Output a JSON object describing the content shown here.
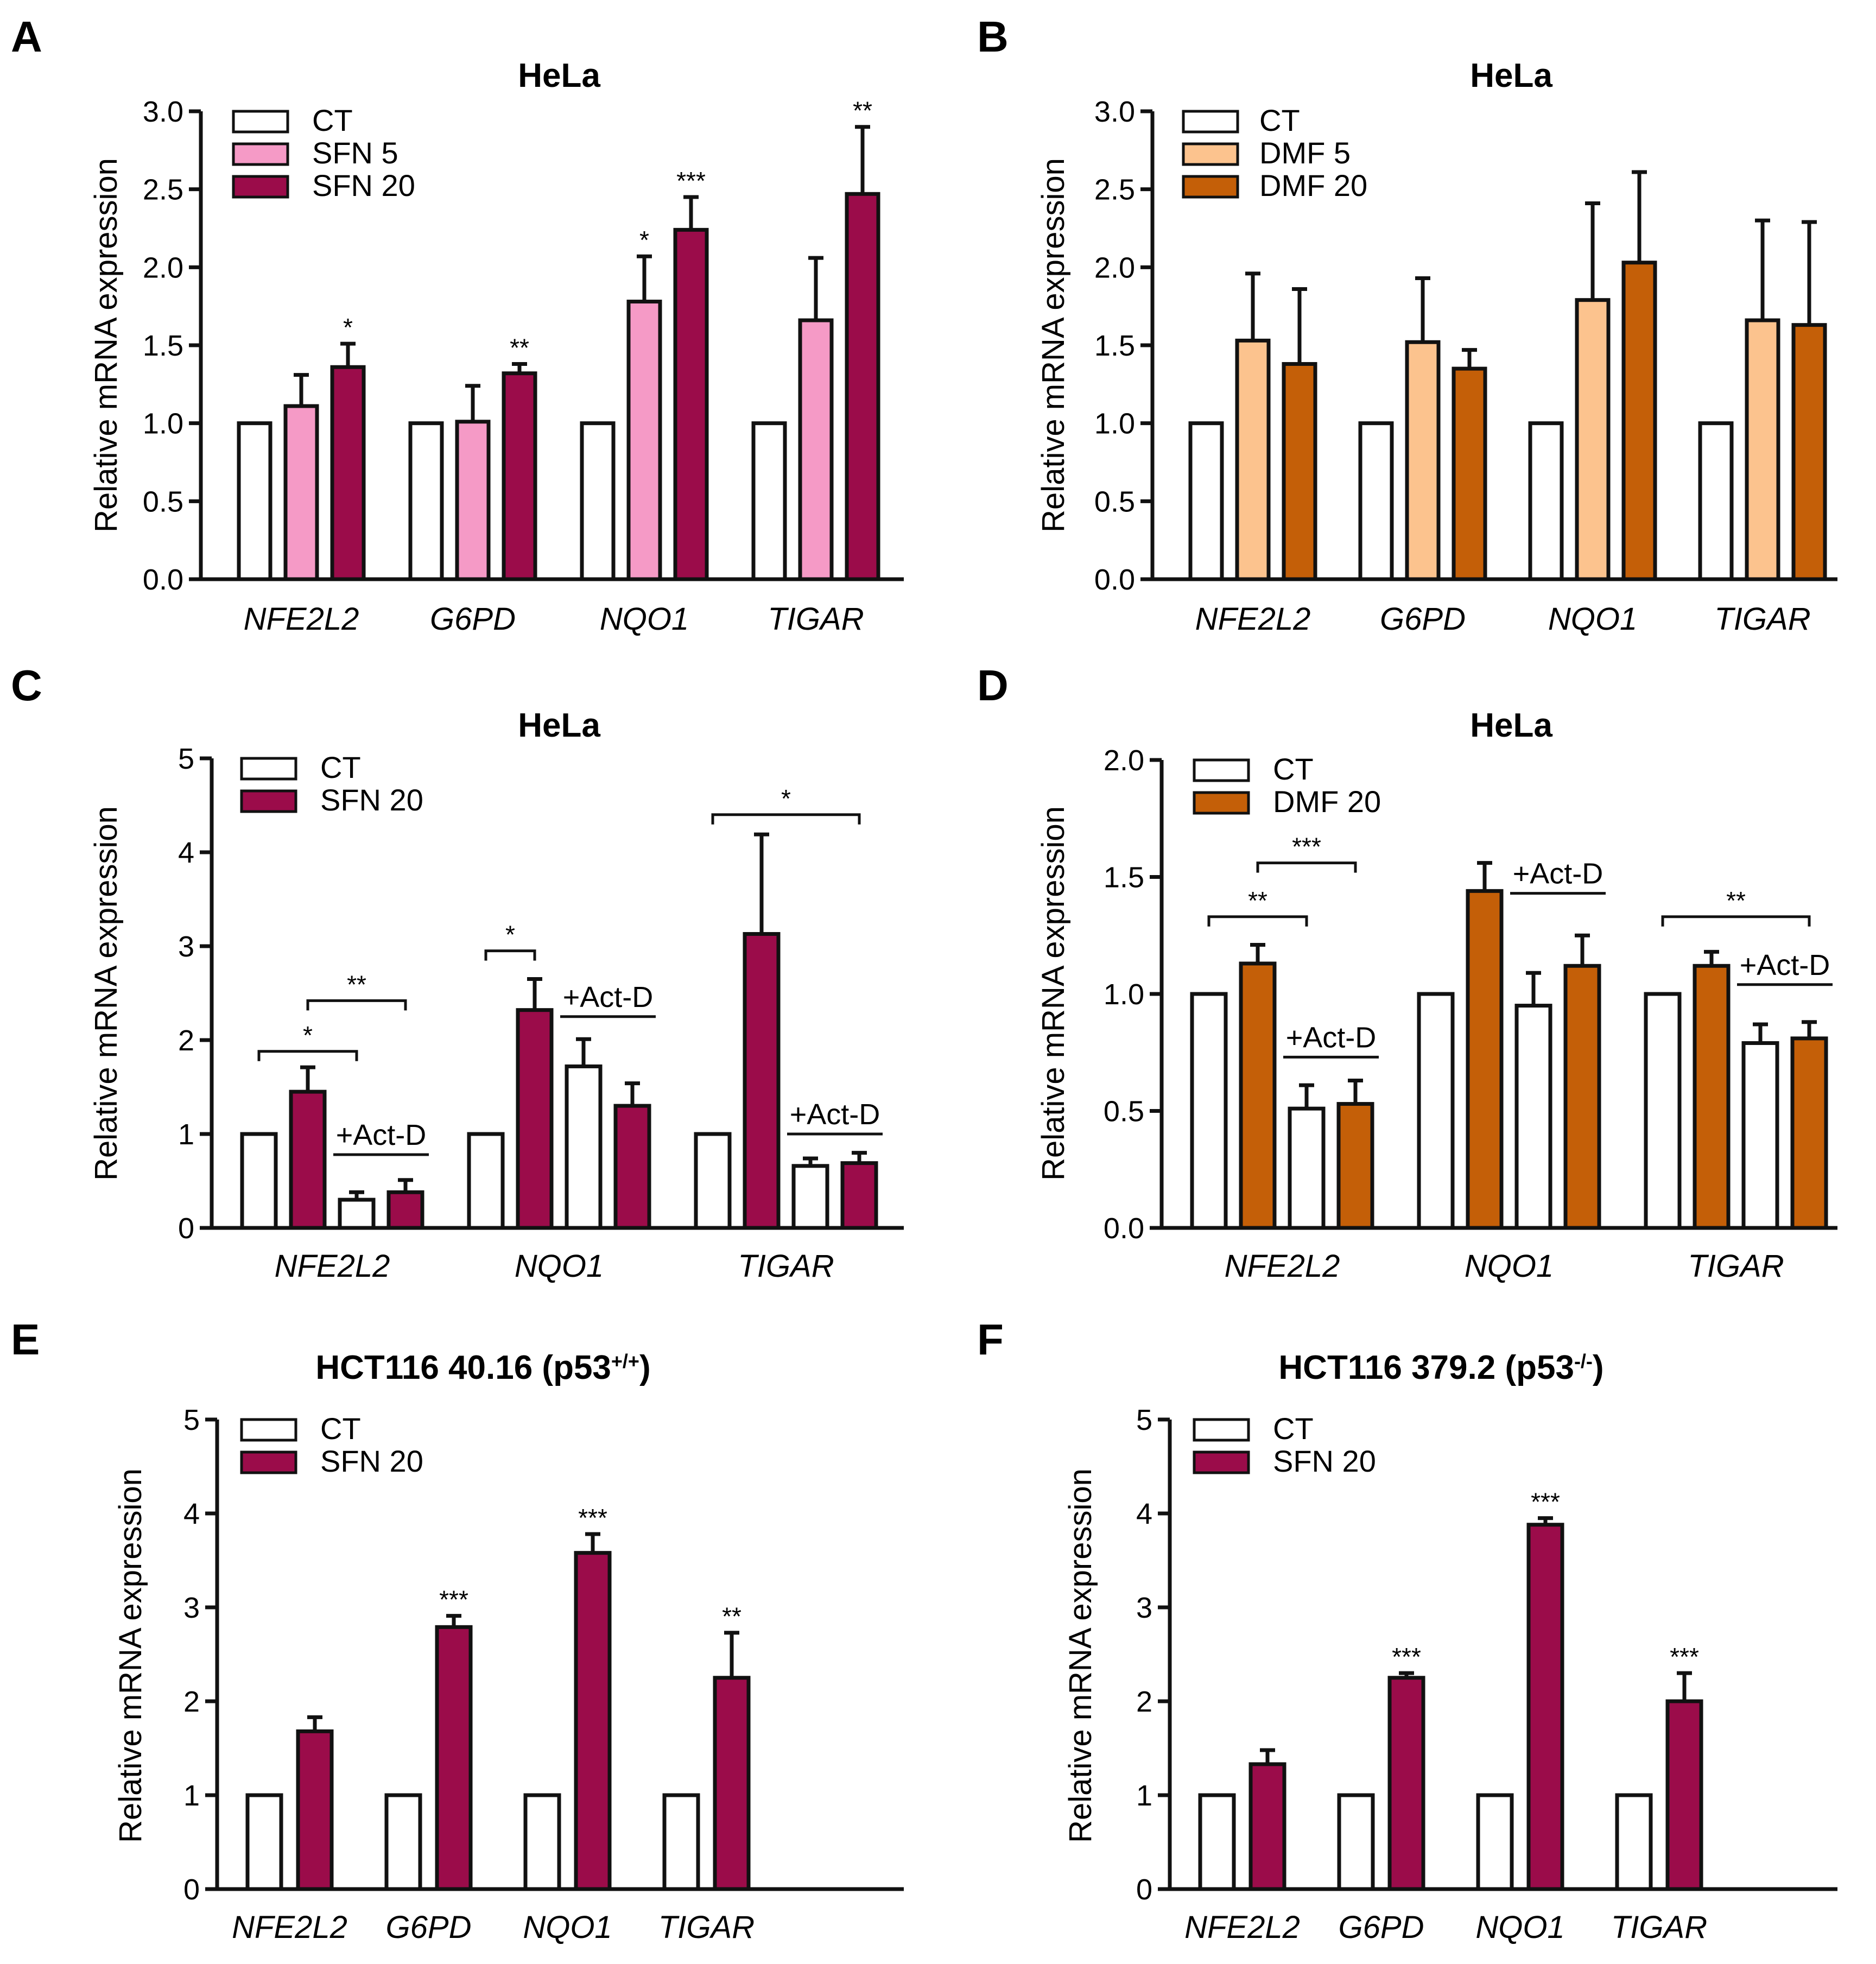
{
  "figure": {
    "ylabel": "Relative mRNA expression"
  },
  "chart_data": [
    {
      "panel": "A",
      "type": "bar",
      "title": "HeLa",
      "ylabel": "Relative mRNA expression",
      "ylim": [
        0,
        3.0
      ],
      "yticks": [
        "0.0",
        "0.5",
        "1.0",
        "1.5",
        "2.0",
        "2.5",
        "3.0"
      ],
      "categories": [
        "NFE2L2",
        "G6PD",
        "NQO1",
        "TIGAR"
      ],
      "legend": [
        "CT",
        "SFN 5",
        "SFN 20"
      ],
      "series": [
        {
          "name": "CT",
          "color": "#ffffff",
          "values": [
            1.0,
            1.0,
            1.0,
            1.0
          ],
          "errors": [
            0,
            0,
            0,
            0
          ],
          "sig": [
            "",
            "",
            "",
            ""
          ]
        },
        {
          "name": "SFN 5",
          "color": "#f59ac6",
          "values": [
            1.11,
            1.01,
            1.78,
            1.66
          ],
          "errors": [
            0.2,
            0.23,
            0.29,
            0.4
          ],
          "sig": [
            "",
            "",
            "*",
            ""
          ]
        },
        {
          "name": "SFN 20",
          "color": "#9b0c4a",
          "values": [
            1.36,
            1.32,
            2.24,
            2.47
          ],
          "errors": [
            0.15,
            0.06,
            0.21,
            0.43
          ],
          "sig": [
            "*",
            "**",
            "***",
            "**"
          ]
        }
      ]
    },
    {
      "panel": "B",
      "type": "bar",
      "title": "HeLa",
      "ylabel": "Relative mRNA expression",
      "ylim": [
        0,
        3.0
      ],
      "yticks": [
        "0.0",
        "0.5",
        "1.0",
        "1.5",
        "2.0",
        "2.5",
        "3.0"
      ],
      "categories": [
        "NFE2L2",
        "G6PD",
        "NQO1",
        "TIGAR"
      ],
      "legend": [
        "CT",
        "DMF 5",
        "DMF 20"
      ],
      "series": [
        {
          "name": "CT",
          "color": "#ffffff",
          "values": [
            1.0,
            1.0,
            1.0,
            1.0
          ],
          "errors": [
            0,
            0,
            0,
            0
          ],
          "sig": [
            "",
            "",
            "",
            ""
          ]
        },
        {
          "name": "DMF 5",
          "color": "#fcc38e",
          "values": [
            1.53,
            1.52,
            1.79,
            1.66
          ],
          "errors": [
            0.43,
            0.41,
            0.62,
            0.64
          ],
          "sig": [
            "",
            "",
            "",
            ""
          ]
        },
        {
          "name": "DMF 20",
          "color": "#c45f08",
          "values": [
            1.38,
            1.35,
            2.03,
            1.63
          ],
          "errors": [
            0.48,
            0.12,
            0.58,
            0.66
          ],
          "sig": [
            "",
            "",
            "",
            ""
          ]
        }
      ]
    },
    {
      "panel": "C",
      "type": "bar",
      "title": "HeLa",
      "ylabel": "Relative mRNA expression",
      "ylim": [
        0,
        5
      ],
      "yticks": [
        "0",
        "1",
        "2",
        "3",
        "4",
        "5"
      ],
      "categories": [
        "NFE2L2",
        "NQO1",
        "TIGAR"
      ],
      "legend": [
        "CT",
        "SFN 20"
      ],
      "annotation_text": "+Act-D",
      "groups": [
        {
          "bars": [
            {
              "series": "CT",
              "value": 1.0,
              "error": 0
            },
            {
              "series": "SFN 20",
              "value": 1.45,
              "error": 0.26
            },
            {
              "series": "CT",
              "value": 0.3,
              "error": 0.08
            },
            {
              "series": "SFN 20",
              "value": 0.38,
              "error": 0.13
            }
          ],
          "brackets": [
            {
              "from": 0,
              "to": 2,
              "value": 1.88,
              "label": "*"
            },
            {
              "from": 1,
              "to": 3,
              "value": 2.42,
              "label": "**"
            }
          ],
          "actd": {
            "from": 2,
            "to": 3,
            "value": 0.78,
            "label": "+Act-D"
          }
        },
        {
          "bars": [
            {
              "series": "CT",
              "value": 1.0,
              "error": 0
            },
            {
              "series": "SFN 20",
              "value": 2.32,
              "error": 0.33
            },
            {
              "series": "CT",
              "value": 1.72,
              "error": 0.29
            },
            {
              "series": "SFN 20",
              "value": 1.3,
              "error": 0.24
            }
          ],
          "brackets": [
            {
              "from": 0,
              "to": 1,
              "value": 2.95,
              "label": "*"
            }
          ],
          "actd": {
            "from": 2,
            "to": 3,
            "value": 2.25,
            "label": "+Act-D"
          }
        },
        {
          "bars": [
            {
              "series": "CT",
              "value": 1.0,
              "error": 0
            },
            {
              "series": "SFN 20",
              "value": 3.13,
              "error": 1.06
            },
            {
              "series": "CT",
              "value": 0.66,
              "error": 0.08
            },
            {
              "series": "SFN 20",
              "value": 0.69,
              "error": 0.11
            }
          ],
          "brackets": [
            {
              "from": 0,
              "to": 3,
              "value": 4.4,
              "label": "*"
            }
          ],
          "actd": {
            "from": 2,
            "to": 3,
            "value": 1.0,
            "label": "+Act-D"
          }
        }
      ],
      "colors": {
        "CT": "#ffffff",
        "SFN 20": "#9b0c4a"
      }
    },
    {
      "panel": "D",
      "type": "bar",
      "title": "HeLa",
      "ylabel": "Relative mRNA expression",
      "ylim": [
        0,
        2.0
      ],
      "yticks": [
        "0.0",
        "0.5",
        "1.0",
        "1.5",
        "2.0"
      ],
      "categories": [
        "NFE2L2",
        "NQO1",
        "TIGAR"
      ],
      "legend": [
        "CT",
        "DMF 20"
      ],
      "annotation_text": "+Act-D",
      "groups": [
        {
          "bars": [
            {
              "series": "CT",
              "value": 1.0,
              "error": 0
            },
            {
              "series": "DMF 20",
              "value": 1.13,
              "error": 0.08
            },
            {
              "series": "CT",
              "value": 0.51,
              "error": 0.1
            },
            {
              "series": "DMF 20",
              "value": 0.53,
              "error": 0.1
            }
          ],
          "brackets": [
            {
              "from": 0,
              "to": 2,
              "value": 1.33,
              "label": "**"
            },
            {
              "from": 1,
              "to": 3,
              "value": 1.56,
              "label": "***"
            }
          ],
          "actd": {
            "from": 2,
            "to": 3,
            "value": 0.73,
            "label": "+Act-D"
          }
        },
        {
          "bars": [
            {
              "series": "CT",
              "value": 1.0,
              "error": 0
            },
            {
              "series": "DMF 20",
              "value": 1.44,
              "error": 0.12
            },
            {
              "series": "CT",
              "value": 0.95,
              "error": 0.14
            },
            {
              "series": "DMF 20",
              "value": 1.12,
              "error": 0.13
            }
          ],
          "actd": {
            "from": 2,
            "to": 3,
            "value": 1.43,
            "label": "+Act-D"
          }
        },
        {
          "bars": [
            {
              "series": "CT",
              "value": 1.0,
              "error": 0
            },
            {
              "series": "DMF 20",
              "value": 1.12,
              "error": 0.06
            },
            {
              "series": "CT",
              "value": 0.79,
              "error": 0.08
            },
            {
              "series": "DMF 20",
              "value": 0.81,
              "error": 0.07
            }
          ],
          "brackets": [
            {
              "from": 0,
              "to": 3,
              "value": 1.33,
              "label": "**"
            }
          ],
          "actd": {
            "from": 2,
            "to": 3,
            "value": 1.04,
            "label": "+Act-D"
          }
        }
      ],
      "colors": {
        "CT": "#ffffff",
        "DMF 20": "#c45f08"
      }
    },
    {
      "panel": "E",
      "type": "bar",
      "title": "HCT116 40.16 (p53",
      "title_sup": "+/+",
      "title_end": ")",
      "ylabel": "Relative mRNA expression",
      "ylim": [
        0,
        5
      ],
      "yticks": [
        "0",
        "1",
        "2",
        "3",
        "4",
        "5"
      ],
      "categories": [
        "NFE2L2",
        "G6PD",
        "NQO1",
        "TIGAR"
      ],
      "legend": [
        "CT",
        "SFN 20"
      ],
      "series": [
        {
          "name": "CT",
          "color": "#ffffff",
          "values": [
            1.0,
            1.0,
            1.0,
            1.0
          ],
          "errors": [
            0,
            0,
            0,
            0
          ],
          "sig": [
            "",
            "",
            "",
            ""
          ]
        },
        {
          "name": "SFN 20",
          "color": "#9b0c4a",
          "values": [
            1.68,
            2.79,
            3.58,
            2.25
          ],
          "errors": [
            0.15,
            0.12,
            0.2,
            0.48
          ],
          "sig": [
            "",
            "***",
            "***",
            "**"
          ]
        }
      ]
    },
    {
      "panel": "F",
      "type": "bar",
      "title": "HCT116 379.2 (p53",
      "title_sup": "-/-",
      "title_end": ")",
      "ylabel": "Relative mRNA expression",
      "ylim": [
        0,
        5
      ],
      "yticks": [
        "0",
        "1",
        "2",
        "3",
        "4",
        "5"
      ],
      "categories": [
        "NFE2L2",
        "G6PD",
        "NQO1",
        "TIGAR"
      ],
      "legend": [
        "CT",
        "SFN 20"
      ],
      "series": [
        {
          "name": "CT",
          "color": "#ffffff",
          "values": [
            1.0,
            1.0,
            1.0,
            1.0
          ],
          "errors": [
            0,
            0,
            0,
            0
          ],
          "sig": [
            "",
            "",
            "",
            ""
          ]
        },
        {
          "name": "SFN 20",
          "color": "#9b0c4a",
          "values": [
            1.33,
            2.25,
            3.88,
            2.0
          ],
          "errors": [
            0.15,
            0.05,
            0.07,
            0.3
          ],
          "sig": [
            "",
            "***",
            "***",
            "***"
          ]
        }
      ]
    }
  ]
}
